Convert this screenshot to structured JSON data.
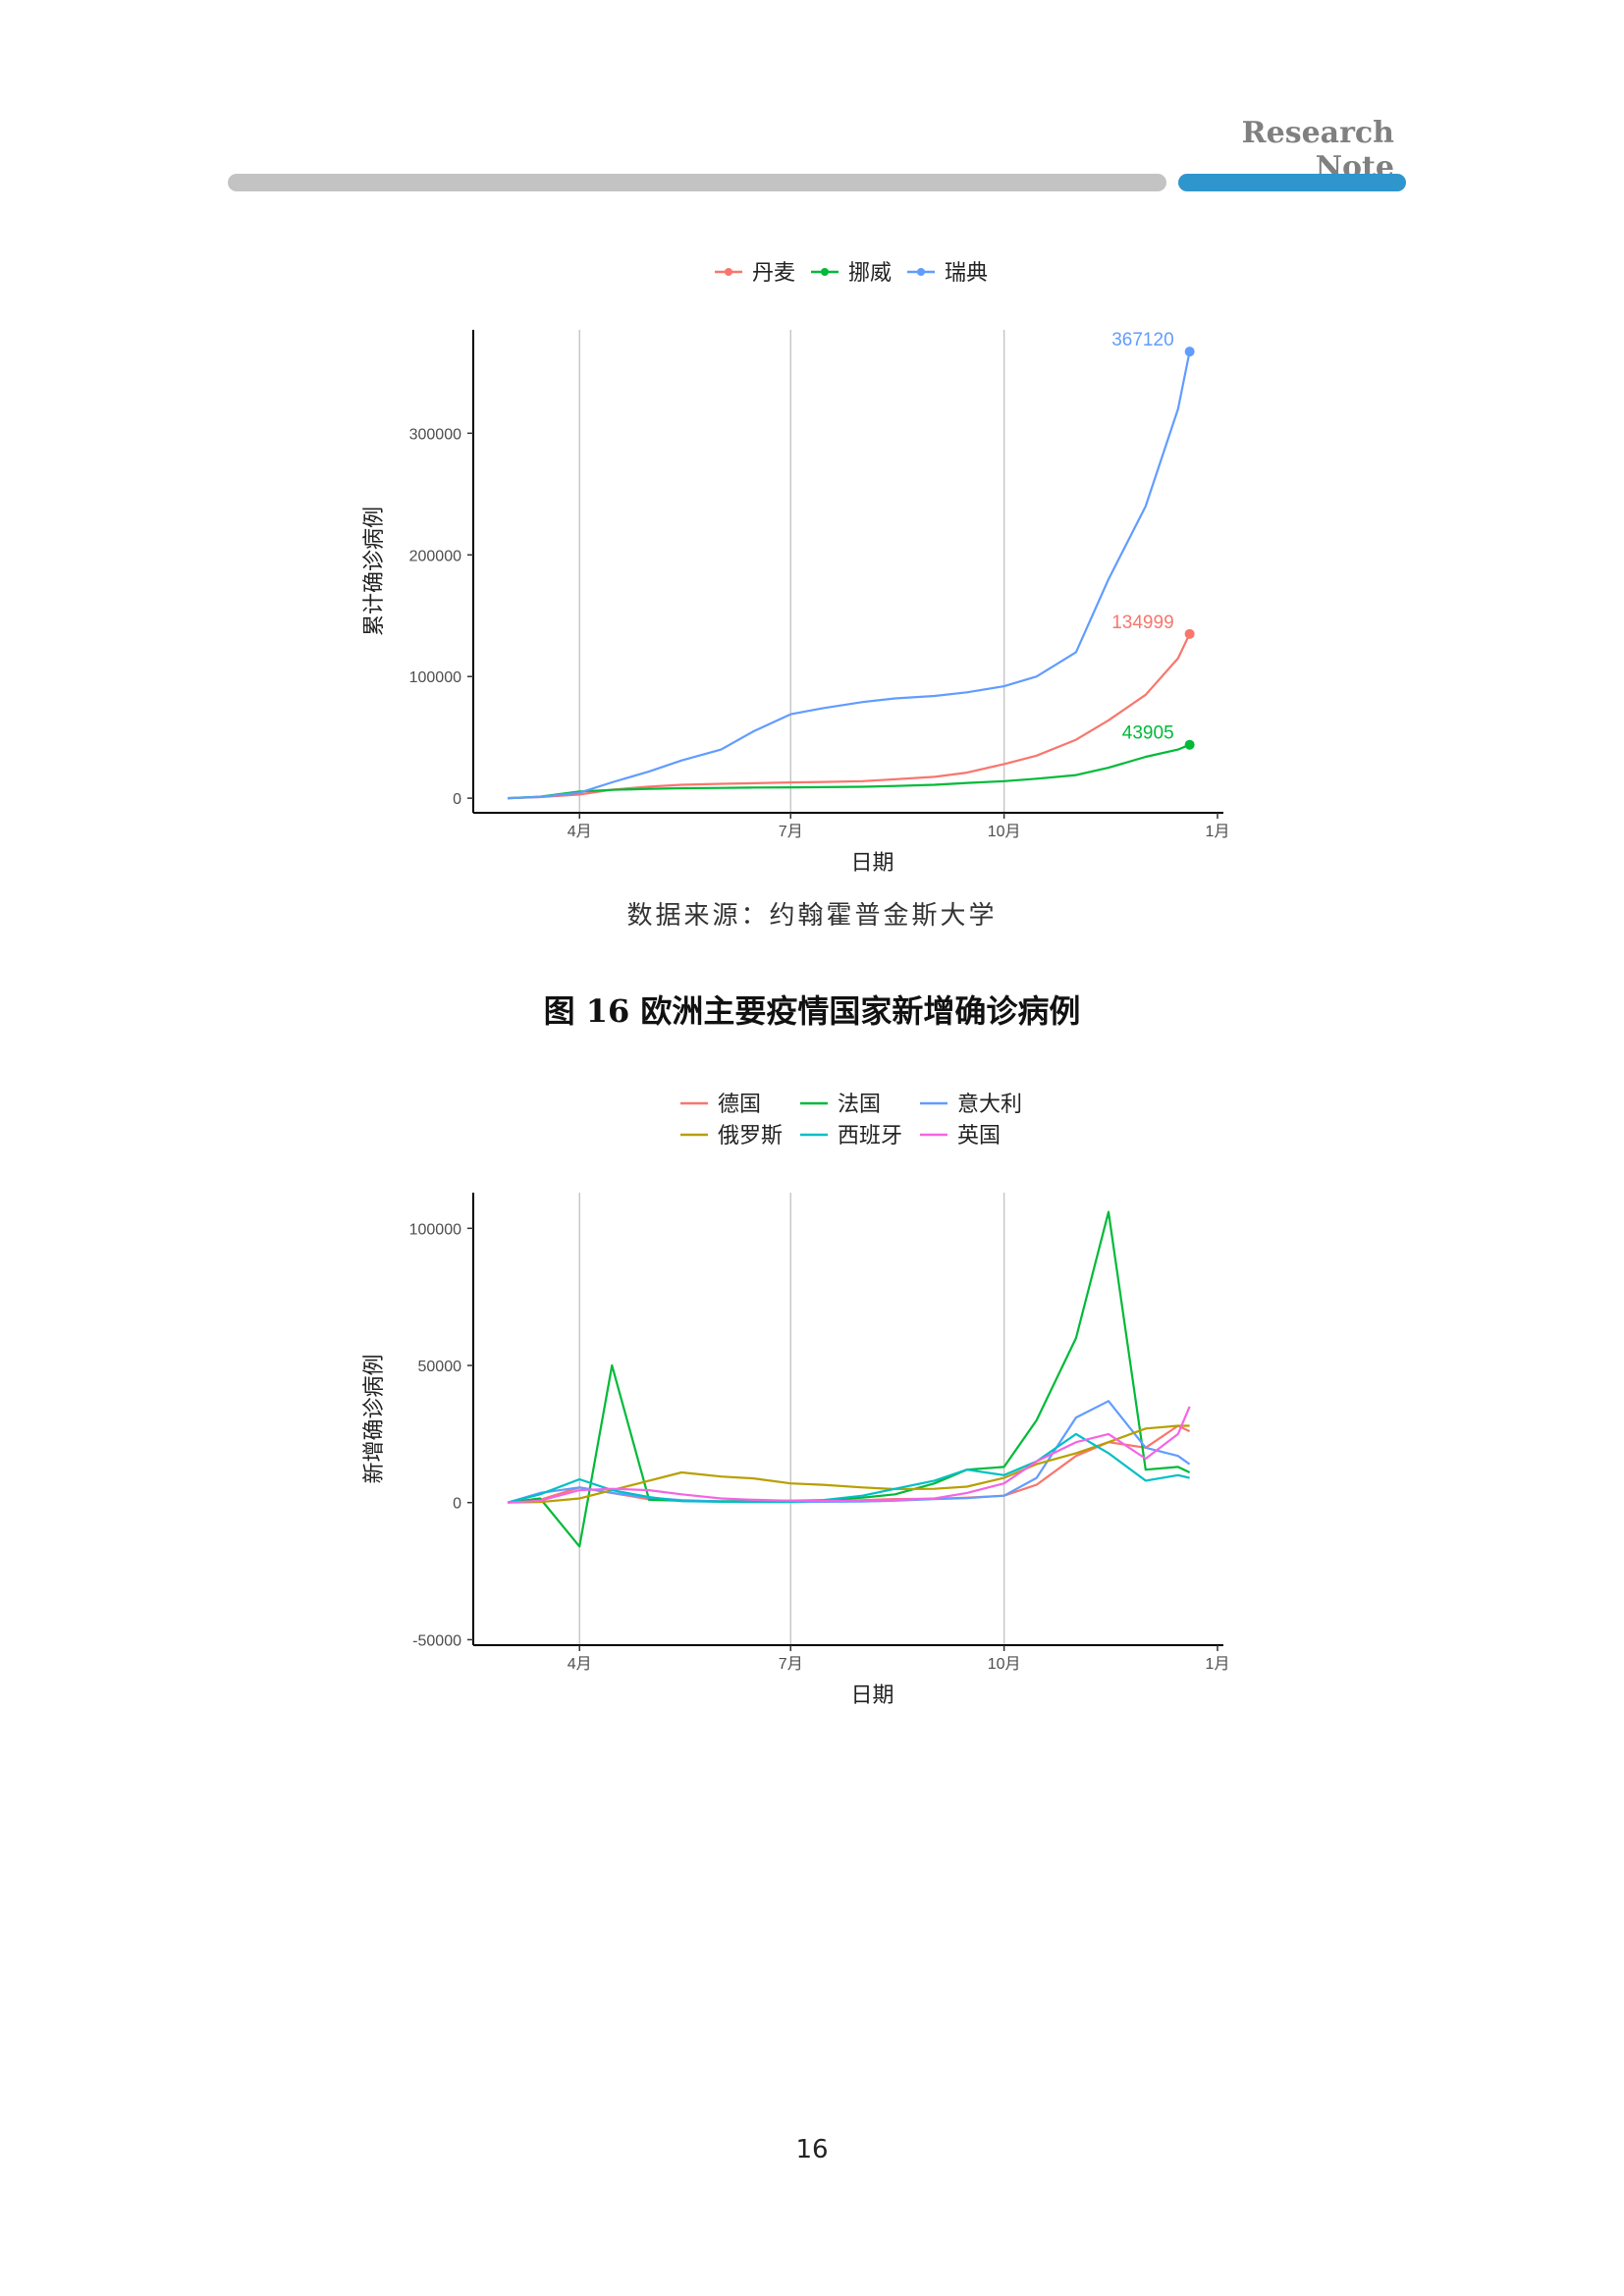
{
  "header": {
    "title": "Research Note"
  },
  "source": "数据来源：约翰霍普金斯大学",
  "figure_title": "图 16 欧洲主要疫情国家新增确诊病例",
  "page_number": "16",
  "chart_data": [
    {
      "type": "line",
      "xlabel": "日期",
      "ylabel": "累计确诊病例",
      "x_ticks": [
        "4月",
        "7月",
        "10月",
        "1月"
      ],
      "y_ticks": [
        "0",
        "100000",
        "200000",
        "300000"
      ],
      "ylim": [
        -12000,
        385000
      ],
      "grid": "vertical",
      "legend": "top",
      "x": [
        "2020-03-01",
        "2020-03-15",
        "2020-04-01",
        "2020-04-15",
        "2020-05-01",
        "2020-05-15",
        "2020-06-01",
        "2020-06-15",
        "2020-07-01",
        "2020-07-15",
        "2020-08-01",
        "2020-08-15",
        "2020-09-01",
        "2020-09-15",
        "2020-10-01",
        "2020-10-15",
        "2020-11-01",
        "2020-11-15",
        "2020-12-01",
        "2020-12-15",
        "2020-12-20"
      ],
      "series": [
        {
          "name": "丹麦",
          "color": "#f8766d",
          "values": [
            0,
            900,
            3000,
            7000,
            9500,
            11000,
            11800,
            12300,
            12900,
            13300,
            14000,
            15500,
            17500,
            21000,
            28000,
            35000,
            48000,
            64000,
            85000,
            115000,
            134999
          ],
          "end_label": "134999"
        },
        {
          "name": "挪威",
          "color": "#00ba38",
          "values": [
            0,
            1200,
            5500,
            6800,
            7700,
            8200,
            8400,
            8700,
            8900,
            9100,
            9400,
            10000,
            11000,
            12500,
            14000,
            16000,
            19000,
            25000,
            34000,
            40000,
            43905
          ],
          "end_label": "43905"
        },
        {
          "name": "瑞典",
          "color": "#619cff",
          "values": [
            0,
            1000,
            4500,
            13000,
            22000,
            31000,
            40000,
            55000,
            69000,
            74000,
            79000,
            82000,
            84000,
            87000,
            92000,
            100000,
            120000,
            180000,
            240000,
            320000,
            367120
          ],
          "end_label": "367120"
        }
      ]
    },
    {
      "type": "line",
      "xlabel": "日期",
      "ylabel": "新增确诊病例",
      "x_ticks": [
        "4月",
        "7月",
        "10月",
        "1月"
      ],
      "y_ticks": [
        "-50000",
        "0",
        "50000",
        "100000"
      ],
      "ylim": [
        -52000,
        113000
      ],
      "grid": "vertical",
      "legend": "top",
      "x": [
        "2020-03-01",
        "2020-03-15",
        "2020-04-01",
        "2020-04-15",
        "2020-05-01",
        "2020-05-15",
        "2020-06-01",
        "2020-06-15",
        "2020-07-01",
        "2020-07-15",
        "2020-08-01",
        "2020-08-15",
        "2020-09-01",
        "2020-09-15",
        "2020-10-01",
        "2020-10-15",
        "2020-11-01",
        "2020-11-15",
        "2020-12-01",
        "2020-12-15",
        "2020-12-20"
      ],
      "series": [
        {
          "name": "德国",
          "color": "#f8766d",
          "values": [
            0,
            1000,
            5500,
            3500,
            1200,
            700,
            400,
            500,
            400,
            600,
            900,
            1300,
            1400,
            1800,
            2500,
            6500,
            17000,
            22000,
            20000,
            28000,
            26000
          ]
        },
        {
          "name": "法国",
          "color": "#00ba38",
          "values": [
            0,
            1500,
            -16000,
            50000,
            1000,
            700,
            500,
            600,
            700,
            900,
            1800,
            3000,
            7000,
            12000,
            13000,
            30000,
            60000,
            106000,
            12000,
            13000,
            11000
          ]
        },
        {
          "name": "意大利",
          "color": "#619cff",
          "values": [
            0,
            3500,
            5500,
            3500,
            1800,
            900,
            400,
            300,
            200,
            300,
            400,
            700,
            1300,
            1600,
            2500,
            9000,
            31000,
            37000,
            20000,
            17000,
            14000
          ]
        },
        {
          "name": "俄罗斯",
          "color": "#b79f00",
          "values": [
            0,
            200,
            1500,
            4500,
            8000,
            11000,
            9500,
            8800,
            7000,
            6500,
            5500,
            4900,
            5000,
            5800,
            9000,
            14000,
            18000,
            22000,
            27000,
            28000,
            28000
          ]
        },
        {
          "name": "西班牙",
          "color": "#00bfc4",
          "values": [
            0,
            3000,
            8500,
            4500,
            2000,
            500,
            300,
            200,
            300,
            900,
            2500,
            5000,
            8000,
            12000,
            10000,
            15000,
            25000,
            18000,
            8000,
            10000,
            9000
          ]
        },
        {
          "name": "英国",
          "color": "#f564e3",
          "values": [
            0,
            700,
            4500,
            5000,
            4500,
            3000,
            1500,
            1000,
            700,
            600,
            700,
            1000,
            1500,
            3500,
            7000,
            15000,
            22000,
            25000,
            16000,
            25000,
            35000
          ]
        }
      ]
    }
  ]
}
